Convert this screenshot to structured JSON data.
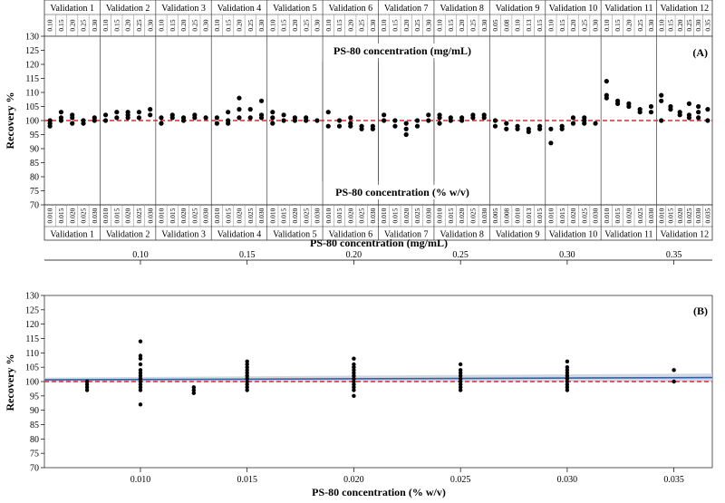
{
  "colors": {
    "points": "#000000",
    "reference_line": "#e8242a",
    "fit_line": "#3560a0",
    "confidence_band": "#c9d2e3",
    "grid": "#cfcfcf",
    "frame": "#333333"
  },
  "chart_data": [
    {
      "panel": "A",
      "type": "scatter",
      "panel_label": "(A)",
      "ylabel": "Recovery %",
      "ylim": [
        70,
        130
      ],
      "yticks": [
        70,
        75,
        80,
        85,
        90,
        95,
        100,
        105,
        110,
        115,
        120,
        125,
        130
      ],
      "reference_y": 100,
      "top_axis_title": "PS-80 concentration (mg/mL)",
      "bottom_axis_title": "PS-80 concentration (% w/v)",
      "groups": [
        {
          "name": "Validation 1",
          "mg_ticks": [
            "0.10",
            "0.15",
            "0.20",
            "0.25",
            "0.30"
          ],
          "pct_ticks": [
            "0.010",
            "0.015",
            "0.020",
            "0.025",
            "0.030"
          ],
          "points": [
            [
              0,
              98
            ],
            [
              0,
              99
            ],
            [
              0,
              100
            ],
            [
              1,
              100
            ],
            [
              1,
              101
            ],
            [
              1,
              103
            ],
            [
              2,
              99
            ],
            [
              2,
              101
            ],
            [
              2,
              102
            ],
            [
              3,
              99
            ],
            [
              3,
              100
            ],
            [
              4,
              100
            ],
            [
              4,
              101
            ]
          ]
        },
        {
          "name": "Validation 2",
          "mg_ticks": [
            "0.10",
            "0.15",
            "0.20",
            "0.25",
            "0.30"
          ],
          "pct_ticks": [
            "0.010",
            "0.015",
            "0.020",
            "0.025",
            "0.030"
          ],
          "points": [
            [
              0,
              100
            ],
            [
              0,
              102
            ],
            [
              1,
              101
            ],
            [
              1,
              103
            ],
            [
              2,
              101
            ],
            [
              2,
              102
            ],
            [
              2,
              103
            ],
            [
              3,
              101
            ],
            [
              3,
              103
            ],
            [
              4,
              102
            ],
            [
              4,
              104
            ]
          ]
        },
        {
          "name": "Validation 3",
          "mg_ticks": [
            "0.10",
            "0.15",
            "0.20",
            "0.25",
            "0.30"
          ],
          "pct_ticks": [
            "0.010",
            "0.015",
            "0.020",
            "0.025",
            "0.030"
          ],
          "points": [
            [
              0,
              99
            ],
            [
              0,
              101
            ],
            [
              1,
              101
            ],
            [
              1,
              102
            ],
            [
              2,
              100
            ],
            [
              2,
              101
            ],
            [
              3,
              101
            ],
            [
              3,
              102
            ],
            [
              4,
              101
            ]
          ]
        },
        {
          "name": "Validation 4",
          "mg_ticks": [
            "0.10",
            "0.15",
            "0.20",
            "0.25",
            "0.30"
          ],
          "pct_ticks": [
            "0.010",
            "0.015",
            "0.020",
            "0.025",
            "0.030"
          ],
          "points": [
            [
              0,
              99
            ],
            [
              0,
              101
            ],
            [
              1,
              99
            ],
            [
              1,
              100
            ],
            [
              1,
              103
            ],
            [
              2,
              101
            ],
            [
              2,
              104
            ],
            [
              2,
              108
            ],
            [
              3,
              101
            ],
            [
              3,
              104
            ],
            [
              4,
              101
            ],
            [
              4,
              102
            ],
            [
              4,
              107
            ]
          ]
        },
        {
          "name": "Validation 5",
          "mg_ticks": [
            "0.10",
            "0.15",
            "0.20",
            "0.25",
            "0.30"
          ],
          "pct_ticks": [
            "0.010",
            "0.015",
            "0.020",
            "0.025",
            "0.030"
          ],
          "points": [
            [
              0,
              99
            ],
            [
              0,
              101
            ],
            [
              0,
              103
            ],
            [
              1,
              100
            ],
            [
              1,
              102
            ],
            [
              2,
              100
            ],
            [
              2,
              101
            ],
            [
              3,
              100
            ],
            [
              3,
              101
            ],
            [
              4,
              100
            ]
          ]
        },
        {
          "name": "Validation 6",
          "mg_ticks": [
            "0.10",
            "0.15",
            "0.20",
            "0.25",
            "0.30"
          ],
          "pct_ticks": [
            "0.010",
            "0.015",
            "0.020",
            "0.025",
            "0.030"
          ],
          "points": [
            [
              0,
              98
            ],
            [
              0,
              103
            ],
            [
              1,
              98
            ],
            [
              1,
              100
            ],
            [
              2,
              98
            ],
            [
              2,
              99
            ],
            [
              2,
              101
            ],
            [
              3,
              97
            ],
            [
              3,
              98
            ],
            [
              4,
              97
            ],
            [
              4,
              98
            ]
          ]
        },
        {
          "name": "Validation 7",
          "mg_ticks": [
            "0.10",
            "0.15",
            "0.20",
            "0.25",
            "0.30"
          ],
          "pct_ticks": [
            "0.010",
            "0.015",
            "0.020",
            "0.025",
            "0.030"
          ],
          "points": [
            [
              0,
              100
            ],
            [
              0,
              102
            ],
            [
              1,
              98
            ],
            [
              1,
              100
            ],
            [
              2,
              95
            ],
            [
              2,
              97
            ],
            [
              2,
              99
            ],
            [
              3,
              98
            ],
            [
              3,
              100
            ],
            [
              4,
              100
            ],
            [
              4,
              102
            ]
          ]
        },
        {
          "name": "Validation 8",
          "mg_ticks": [
            "0.10",
            "0.15",
            "0.20",
            "0.25",
            "0.30"
          ],
          "pct_ticks": [
            "0.010",
            "0.015",
            "0.020",
            "0.025",
            "0.030"
          ],
          "points": [
            [
              0,
              99
            ],
            [
              0,
              101
            ],
            [
              0,
              102
            ],
            [
              1,
              100
            ],
            [
              1,
              101
            ],
            [
              2,
              100
            ],
            [
              2,
              101
            ],
            [
              3,
              101
            ],
            [
              3,
              102
            ],
            [
              4,
              101
            ],
            [
              4,
              102
            ]
          ]
        },
        {
          "name": "Validation 9",
          "mg_ticks": [
            "0.05",
            "0.08",
            "0.10",
            "0.13",
            "0.15"
          ],
          "pct_ticks": [
            "0.005",
            "0.008",
            "0.010",
            "0.013",
            "0.015"
          ],
          "points": [
            [
              0,
              98
            ],
            [
              0,
              100
            ],
            [
              1,
              97
            ],
            [
              1,
              99
            ],
            [
              2,
              97
            ],
            [
              2,
              98
            ],
            [
              3,
              96
            ],
            [
              3,
              97
            ],
            [
              4,
              97
            ],
            [
              4,
              98
            ]
          ]
        },
        {
          "name": "Validation 10",
          "mg_ticks": [
            "0.10",
            "0.15",
            "0.20",
            "0.25",
            "0.30"
          ],
          "pct_ticks": [
            "0.010",
            "0.015",
            "0.020",
            "0.025",
            "0.030"
          ],
          "points": [
            [
              0,
              92
            ],
            [
              0,
              97
            ],
            [
              1,
              97
            ],
            [
              1,
              98
            ],
            [
              2,
              99
            ],
            [
              2,
              101
            ],
            [
              3,
              99
            ],
            [
              3,
              100
            ],
            [
              3,
              101
            ],
            [
              4,
              99
            ]
          ]
        },
        {
          "name": "Validation 11",
          "mg_ticks": [
            "0.10",
            "0.15",
            "0.20",
            "0.25",
            "0.30"
          ],
          "pct_ticks": [
            "0.010",
            "0.015",
            "0.020",
            "0.025",
            "0.030"
          ],
          "points": [
            [
              0,
              108
            ],
            [
              0,
              109
            ],
            [
              0,
              114
            ],
            [
              1,
              106
            ],
            [
              1,
              107
            ],
            [
              2,
              105
            ],
            [
              2,
              106
            ],
            [
              3,
              103
            ],
            [
              3,
              104
            ],
            [
              4,
              103
            ],
            [
              4,
              105
            ]
          ]
        },
        {
          "name": "Validation 12",
          "mg_ticks": [
            "0.10",
            "0.15",
            "0.20",
            "0.25",
            "0.30",
            "0.35"
          ],
          "pct_ticks": [
            "0.010",
            "0.015",
            "0.020",
            "0.025",
            "0.030",
            "0.035"
          ],
          "points": [
            [
              0,
              100
            ],
            [
              0,
              107
            ],
            [
              0,
              109
            ],
            [
              1,
              104
            ],
            [
              1,
              105
            ],
            [
              2,
              102
            ],
            [
              2,
              103
            ],
            [
              3,
              101
            ],
            [
              3,
              102
            ],
            [
              3,
              106
            ],
            [
              4,
              101
            ],
            [
              4,
              103
            ],
            [
              4,
              105
            ],
            [
              5,
              100
            ],
            [
              5,
              104
            ]
          ]
        }
      ]
    },
    {
      "panel": "B",
      "type": "scatter",
      "panel_label": "(B)",
      "ylabel": "Recovery %",
      "xlabel": "PS-80 concentration (% w/v)",
      "top_xlabel": "PS-80 concentration (mg/mL)",
      "xlim": [
        0.0055,
        0.0368
      ],
      "ylim": [
        70,
        130
      ],
      "yticks": [
        70,
        75,
        80,
        85,
        90,
        95,
        100,
        105,
        110,
        115,
        120,
        125,
        130
      ],
      "xticks": [
        "0.010",
        "0.015",
        "0.020",
        "0.025",
        "0.030",
        "0.035"
      ],
      "top_xticks": [
        "0.10",
        "0.15",
        "0.20",
        "0.25",
        "0.30",
        "0.35"
      ],
      "reference_y": 100,
      "fit_line": {
        "x": [
          0.0055,
          0.0368
        ],
        "y": [
          100.6,
          101.4
        ]
      },
      "points": [
        {
          "x": 0.0075,
          "y": [
            97,
            98,
            99,
            100
          ]
        },
        {
          "x": 0.01,
          "y": [
            92,
            97,
            98,
            99,
            100,
            101,
            102,
            103,
            104,
            106,
            108,
            109,
            114
          ]
        },
        {
          "x": 0.0125,
          "y": [
            96,
            97,
            98
          ]
        },
        {
          "x": 0.015,
          "y": [
            97,
            98,
            99,
            100,
            101,
            102,
            103,
            104,
            105,
            106,
            107
          ]
        },
        {
          "x": 0.02,
          "y": [
            95,
            97,
            98,
            99,
            100,
            101,
            102,
            103,
            104,
            105,
            106,
            108
          ]
        },
        {
          "x": 0.025,
          "y": [
            97,
            98,
            99,
            100,
            101,
            102,
            103,
            104,
            106
          ]
        },
        {
          "x": 0.03,
          "y": [
            97,
            98,
            99,
            100,
            101,
            102,
            103,
            104,
            105,
            107
          ]
        },
        {
          "x": 0.035,
          "y": [
            100,
            104
          ]
        }
      ]
    }
  ]
}
